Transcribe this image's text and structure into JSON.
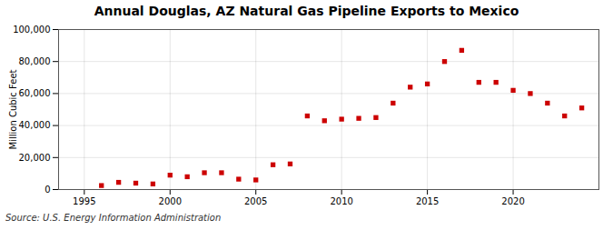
{
  "chart_data": {
    "type": "scatter",
    "title": "Annual Douglas, AZ Natural Gas Pipeline Exports to Mexico",
    "ylabel": "Million Cubic Feet",
    "source": "Source: U.S. Energy Information Administration",
    "x": [
      1996,
      1997,
      1998,
      1999,
      2000,
      2001,
      2002,
      2003,
      2004,
      2005,
      2006,
      2007,
      2008,
      2009,
      2010,
      2011,
      2012,
      2013,
      2014,
      2015,
      2016,
      2017,
      2018,
      2019,
      2020,
      2021,
      2022,
      2023,
      2024
    ],
    "values": [
      2500,
      4500,
      4000,
      3500,
      9000,
      8000,
      10500,
      10500,
      6500,
      6000,
      15500,
      16000,
      46000,
      43000,
      44000,
      44500,
      45000,
      54000,
      64000,
      66000,
      80000,
      87000,
      67000,
      67000,
      62000,
      60000,
      54000,
      46000,
      51000
    ],
    "color": "#cc0000",
    "marker": "square",
    "xlim": [
      1993.5,
      2025
    ],
    "xticks": [
      1995,
      2000,
      2005,
      2010,
      2015,
      2020
    ],
    "ylim": [
      0,
      100000
    ],
    "yticks": [
      0,
      {
        "value": 20000,
        "label": "20,000"
      },
      {
        "value": 40000,
        "label": "40,000"
      },
      {
        "value": 60000,
        "label": "60,000"
      },
      {
        "value": 80000,
        "label": "80,000"
      },
      {
        "value": 100000,
        "label": "100,000"
      }
    ],
    "grid": true
  }
}
